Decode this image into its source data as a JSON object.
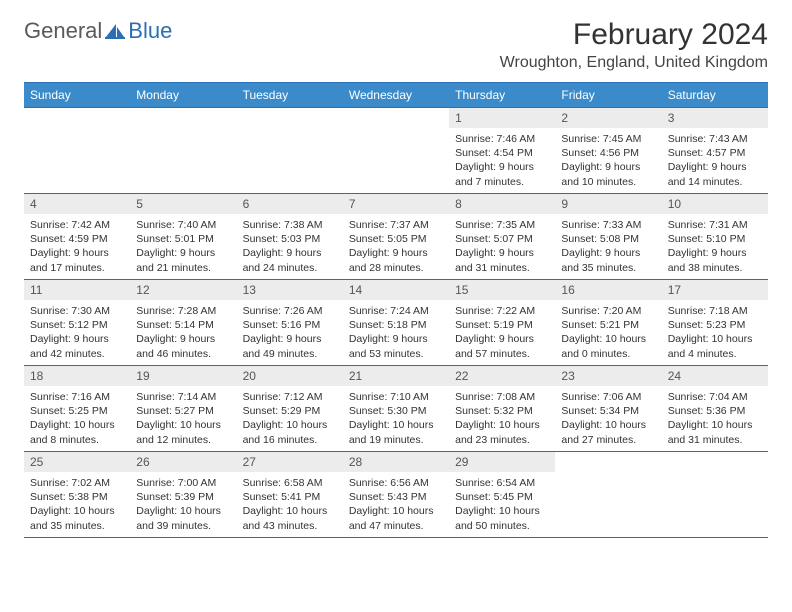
{
  "logo": {
    "general": "General",
    "blue": "Blue"
  },
  "title": "February 2024",
  "location": "Wroughton, England, United Kingdom",
  "colors": {
    "header_bg": "#3b8bca",
    "header_border": "#2a6fb5",
    "daynum_bg": "#ececec",
    "text": "#333333"
  },
  "weekdays": [
    "Sunday",
    "Monday",
    "Tuesday",
    "Wednesday",
    "Thursday",
    "Friday",
    "Saturday"
  ],
  "weeks": [
    [
      null,
      null,
      null,
      null,
      {
        "day": "1",
        "sunrise": "Sunrise: 7:46 AM",
        "sunset": "Sunset: 4:54 PM",
        "daylight1": "Daylight: 9 hours",
        "daylight2": "and 7 minutes."
      },
      {
        "day": "2",
        "sunrise": "Sunrise: 7:45 AM",
        "sunset": "Sunset: 4:56 PM",
        "daylight1": "Daylight: 9 hours",
        "daylight2": "and 10 minutes."
      },
      {
        "day": "3",
        "sunrise": "Sunrise: 7:43 AM",
        "sunset": "Sunset: 4:57 PM",
        "daylight1": "Daylight: 9 hours",
        "daylight2": "and 14 minutes."
      }
    ],
    [
      {
        "day": "4",
        "sunrise": "Sunrise: 7:42 AM",
        "sunset": "Sunset: 4:59 PM",
        "daylight1": "Daylight: 9 hours",
        "daylight2": "and 17 minutes."
      },
      {
        "day": "5",
        "sunrise": "Sunrise: 7:40 AM",
        "sunset": "Sunset: 5:01 PM",
        "daylight1": "Daylight: 9 hours",
        "daylight2": "and 21 minutes."
      },
      {
        "day": "6",
        "sunrise": "Sunrise: 7:38 AM",
        "sunset": "Sunset: 5:03 PM",
        "daylight1": "Daylight: 9 hours",
        "daylight2": "and 24 minutes."
      },
      {
        "day": "7",
        "sunrise": "Sunrise: 7:37 AM",
        "sunset": "Sunset: 5:05 PM",
        "daylight1": "Daylight: 9 hours",
        "daylight2": "and 28 minutes."
      },
      {
        "day": "8",
        "sunrise": "Sunrise: 7:35 AM",
        "sunset": "Sunset: 5:07 PM",
        "daylight1": "Daylight: 9 hours",
        "daylight2": "and 31 minutes."
      },
      {
        "day": "9",
        "sunrise": "Sunrise: 7:33 AM",
        "sunset": "Sunset: 5:08 PM",
        "daylight1": "Daylight: 9 hours",
        "daylight2": "and 35 minutes."
      },
      {
        "day": "10",
        "sunrise": "Sunrise: 7:31 AM",
        "sunset": "Sunset: 5:10 PM",
        "daylight1": "Daylight: 9 hours",
        "daylight2": "and 38 minutes."
      }
    ],
    [
      {
        "day": "11",
        "sunrise": "Sunrise: 7:30 AM",
        "sunset": "Sunset: 5:12 PM",
        "daylight1": "Daylight: 9 hours",
        "daylight2": "and 42 minutes."
      },
      {
        "day": "12",
        "sunrise": "Sunrise: 7:28 AM",
        "sunset": "Sunset: 5:14 PM",
        "daylight1": "Daylight: 9 hours",
        "daylight2": "and 46 minutes."
      },
      {
        "day": "13",
        "sunrise": "Sunrise: 7:26 AM",
        "sunset": "Sunset: 5:16 PM",
        "daylight1": "Daylight: 9 hours",
        "daylight2": "and 49 minutes."
      },
      {
        "day": "14",
        "sunrise": "Sunrise: 7:24 AM",
        "sunset": "Sunset: 5:18 PM",
        "daylight1": "Daylight: 9 hours",
        "daylight2": "and 53 minutes."
      },
      {
        "day": "15",
        "sunrise": "Sunrise: 7:22 AM",
        "sunset": "Sunset: 5:19 PM",
        "daylight1": "Daylight: 9 hours",
        "daylight2": "and 57 minutes."
      },
      {
        "day": "16",
        "sunrise": "Sunrise: 7:20 AM",
        "sunset": "Sunset: 5:21 PM",
        "daylight1": "Daylight: 10 hours",
        "daylight2": "and 0 minutes."
      },
      {
        "day": "17",
        "sunrise": "Sunrise: 7:18 AM",
        "sunset": "Sunset: 5:23 PM",
        "daylight1": "Daylight: 10 hours",
        "daylight2": "and 4 minutes."
      }
    ],
    [
      {
        "day": "18",
        "sunrise": "Sunrise: 7:16 AM",
        "sunset": "Sunset: 5:25 PM",
        "daylight1": "Daylight: 10 hours",
        "daylight2": "and 8 minutes."
      },
      {
        "day": "19",
        "sunrise": "Sunrise: 7:14 AM",
        "sunset": "Sunset: 5:27 PM",
        "daylight1": "Daylight: 10 hours",
        "daylight2": "and 12 minutes."
      },
      {
        "day": "20",
        "sunrise": "Sunrise: 7:12 AM",
        "sunset": "Sunset: 5:29 PM",
        "daylight1": "Daylight: 10 hours",
        "daylight2": "and 16 minutes."
      },
      {
        "day": "21",
        "sunrise": "Sunrise: 7:10 AM",
        "sunset": "Sunset: 5:30 PM",
        "daylight1": "Daylight: 10 hours",
        "daylight2": "and 19 minutes."
      },
      {
        "day": "22",
        "sunrise": "Sunrise: 7:08 AM",
        "sunset": "Sunset: 5:32 PM",
        "daylight1": "Daylight: 10 hours",
        "daylight2": "and 23 minutes."
      },
      {
        "day": "23",
        "sunrise": "Sunrise: 7:06 AM",
        "sunset": "Sunset: 5:34 PM",
        "daylight1": "Daylight: 10 hours",
        "daylight2": "and 27 minutes."
      },
      {
        "day": "24",
        "sunrise": "Sunrise: 7:04 AM",
        "sunset": "Sunset: 5:36 PM",
        "daylight1": "Daylight: 10 hours",
        "daylight2": "and 31 minutes."
      }
    ],
    [
      {
        "day": "25",
        "sunrise": "Sunrise: 7:02 AM",
        "sunset": "Sunset: 5:38 PM",
        "daylight1": "Daylight: 10 hours",
        "daylight2": "and 35 minutes."
      },
      {
        "day": "26",
        "sunrise": "Sunrise: 7:00 AM",
        "sunset": "Sunset: 5:39 PM",
        "daylight1": "Daylight: 10 hours",
        "daylight2": "and 39 minutes."
      },
      {
        "day": "27",
        "sunrise": "Sunrise: 6:58 AM",
        "sunset": "Sunset: 5:41 PM",
        "daylight1": "Daylight: 10 hours",
        "daylight2": "and 43 minutes."
      },
      {
        "day": "28",
        "sunrise": "Sunrise: 6:56 AM",
        "sunset": "Sunset: 5:43 PM",
        "daylight1": "Daylight: 10 hours",
        "daylight2": "and 47 minutes."
      },
      {
        "day": "29",
        "sunrise": "Sunrise: 6:54 AM",
        "sunset": "Sunset: 5:45 PM",
        "daylight1": "Daylight: 10 hours",
        "daylight2": "and 50 minutes."
      },
      null,
      null
    ]
  ]
}
